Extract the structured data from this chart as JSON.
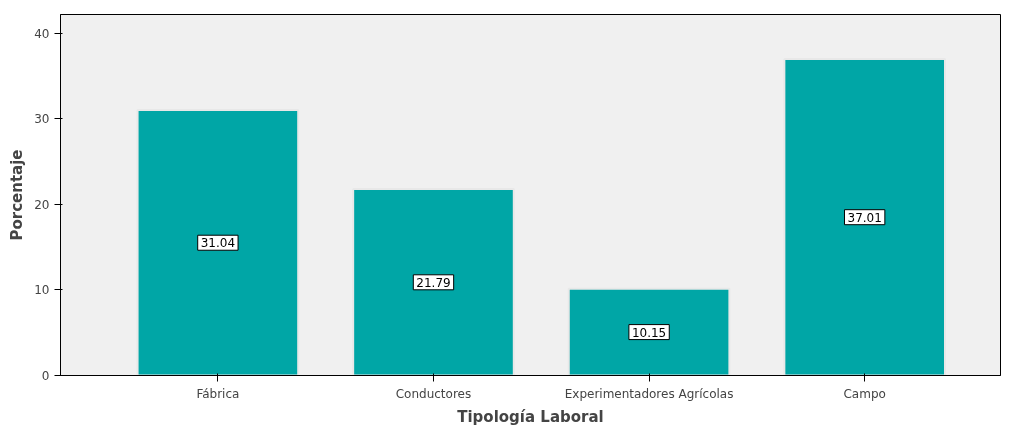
{
  "chart_data": {
    "type": "bar",
    "xlabel": "Tipología Laboral",
    "ylabel": "Porcentaje",
    "categories": [
      "Fábrica",
      "Conductores",
      "Experimentadores Agrícolas",
      "Campo"
    ],
    "values": [
      31.04,
      21.79,
      10.15,
      37.01
    ],
    "color": "#00a6a6",
    "ylim": [
      0,
      42.2
    ],
    "yticks": [
      0,
      10,
      20,
      30,
      40
    ],
    "grid": false,
    "data_labels": true
  }
}
